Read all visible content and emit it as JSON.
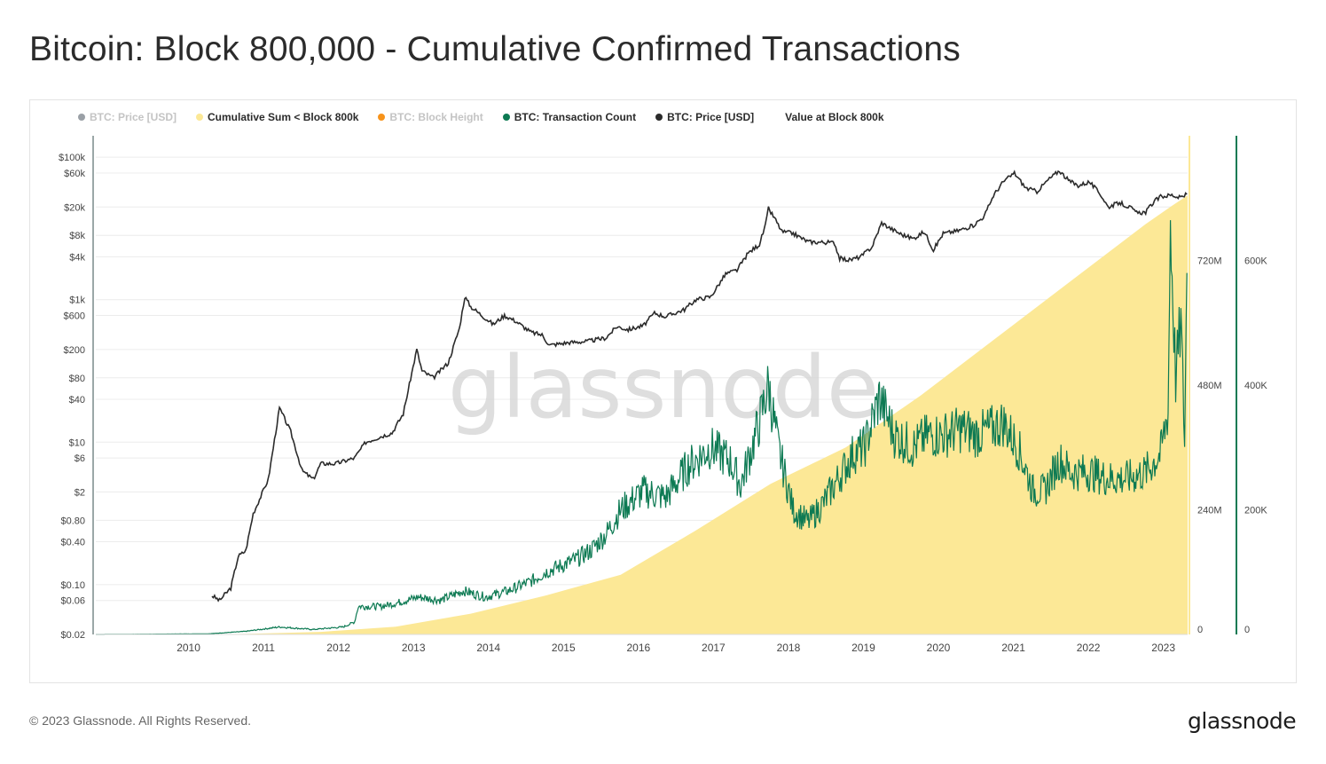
{
  "title": "Bitcoin: Block 800,000 - Cumulative Confirmed Transactions",
  "footer": {
    "copyright": "© 2023 Glassnode. All Rights Reserved.",
    "logo": "glassnode"
  },
  "watermark": "glassnode",
  "colors": {
    "price": "#2b2b2b",
    "cumulative": "#fce896",
    "transactions": "#0d7a53",
    "block_height": "#f7931a",
    "muted": "#a0a4a8"
  },
  "legend": [
    {
      "label": "BTC: Price [USD]",
      "color": "#9aa0a6",
      "active": false
    },
    {
      "label": "Cumulative Sum < Block 800k",
      "color": "#fce896",
      "active": true
    },
    {
      "label": "BTC: Block Height",
      "color": "#f7931a",
      "active": false
    },
    {
      "label": "BTC: Transaction Count",
      "color": "#0d7a53",
      "active": true
    },
    {
      "label": "BTC: Price [USD]",
      "color": "#2b2b2b",
      "active": true
    },
    {
      "label": "Value at Block 800k",
      "color": "",
      "active": true
    }
  ],
  "chart_data": {
    "type": "line",
    "title": "Bitcoin: Block 800,000 - Cumulative Confirmed Transactions",
    "x_range": [
      2009.0,
      2023.56
    ],
    "x_ticks": [
      "2010",
      "2011",
      "2012",
      "2013",
      "2014",
      "2015",
      "2016",
      "2017",
      "2018",
      "2019",
      "2020",
      "2021",
      "2022",
      "2023"
    ],
    "x_tick_values": [
      2010,
      2011,
      2012,
      2013,
      2014,
      2015,
      2016,
      2017,
      2018,
      2019,
      2020,
      2021,
      2022,
      2023
    ],
    "y_left": {
      "scale": "log",
      "range": [
        0.02,
        200000
      ],
      "ticks": [
        "$100k",
        "$60k",
        "$20k",
        "$8k",
        "$4k",
        "$1k",
        "$600",
        "$200",
        "$80",
        "$40",
        "$10",
        "$6",
        "$2",
        "$0.80",
        "$0.40",
        "$0.10",
        "$0.06",
        "$0.02"
      ],
      "tick_values": [
        100000,
        60000,
        20000,
        8000,
        4000,
        1000,
        600,
        200,
        80,
        40,
        10,
        6,
        2,
        0.8,
        0.4,
        0.1,
        0.06,
        0.02
      ]
    },
    "y_right_cumulative": {
      "range": [
        0,
        960000000
      ],
      "ticks": [
        "720M",
        "480M",
        "240M",
        "0"
      ],
      "tick_values": [
        720000000,
        480000000,
        240000000,
        0
      ]
    },
    "y_right_transactions": {
      "range": [
        0,
        800000
      ],
      "ticks": [
        "600K",
        "400K",
        "200K",
        "0"
      ],
      "tick_values": [
        600000,
        400000,
        200000,
        0
      ]
    },
    "grid": true,
    "legend_position": "top-left",
    "series": [
      {
        "name": "BTC: Price [USD]",
        "axis": "left",
        "points": [
          [
            2010.55,
            0.07
          ],
          [
            2010.65,
            0.06
          ],
          [
            2010.8,
            0.09
          ],
          [
            2010.9,
            0.25
          ],
          [
            2011.0,
            0.3
          ],
          [
            2011.1,
            1.0
          ],
          [
            2011.3,
            3.0
          ],
          [
            2011.45,
            30
          ],
          [
            2011.6,
            14
          ],
          [
            2011.75,
            4
          ],
          [
            2011.9,
            3
          ],
          [
            2012.0,
            5
          ],
          [
            2012.2,
            5
          ],
          [
            2012.45,
            6
          ],
          [
            2012.6,
            10
          ],
          [
            2012.8,
            12
          ],
          [
            2012.95,
            13.5
          ],
          [
            2013.1,
            25
          ],
          [
            2013.28,
            200
          ],
          [
            2013.35,
            100
          ],
          [
            2013.5,
            80
          ],
          [
            2013.7,
            130
          ],
          [
            2013.85,
            400
          ],
          [
            2013.92,
            1100
          ],
          [
            2014.0,
            800
          ],
          [
            2014.15,
            600
          ],
          [
            2014.3,
            450
          ],
          [
            2014.45,
            600
          ],
          [
            2014.6,
            500
          ],
          [
            2014.8,
            350
          ],
          [
            2014.95,
            320
          ],
          [
            2015.05,
            230
          ],
          [
            2015.3,
            250
          ],
          [
            2015.55,
            260
          ],
          [
            2015.8,
            290
          ],
          [
            2015.95,
            420
          ],
          [
            2016.1,
            380
          ],
          [
            2016.3,
            430
          ],
          [
            2016.45,
            650
          ],
          [
            2016.6,
            580
          ],
          [
            2016.85,
            730
          ],
          [
            2017.0,
            1000
          ],
          [
            2017.2,
            1100
          ],
          [
            2017.4,
            2300
          ],
          [
            2017.55,
            2600
          ],
          [
            2017.7,
            4500
          ],
          [
            2017.85,
            6000
          ],
          [
            2017.93,
            11000
          ],
          [
            2017.97,
            19000
          ],
          [
            2018.05,
            14000
          ],
          [
            2018.15,
            9000
          ],
          [
            2018.3,
            8500
          ],
          [
            2018.5,
            6500
          ],
          [
            2018.7,
            6400
          ],
          [
            2018.85,
            6300
          ],
          [
            2018.92,
            3800
          ],
          [
            2019.05,
            3600
          ],
          [
            2019.2,
            4000
          ],
          [
            2019.35,
            5500
          ],
          [
            2019.48,
            12000
          ],
          [
            2019.6,
            10000
          ],
          [
            2019.75,
            8200
          ],
          [
            2019.9,
            7200
          ],
          [
            2020.05,
            9000
          ],
          [
            2020.17,
            5000
          ],
          [
            2020.3,
            8500
          ],
          [
            2020.5,
            9300
          ],
          [
            2020.7,
            11000
          ],
          [
            2020.85,
            15000
          ],
          [
            2020.97,
            29000
          ],
          [
            2021.1,
            45000
          ],
          [
            2021.25,
            60000
          ],
          [
            2021.4,
            37000
          ],
          [
            2021.55,
            33000
          ],
          [
            2021.7,
            48000
          ],
          [
            2021.85,
            65000
          ],
          [
            2021.97,
            47000
          ],
          [
            2022.1,
            40000
          ],
          [
            2022.25,
            45000
          ],
          [
            2022.4,
            30000
          ],
          [
            2022.5,
            20000
          ],
          [
            2022.65,
            23000
          ],
          [
            2022.8,
            19500
          ],
          [
            2022.88,
            16500
          ],
          [
            2023.0,
            17000
          ],
          [
            2023.1,
            23000
          ],
          [
            2023.2,
            28000
          ],
          [
            2023.35,
            29500
          ],
          [
            2023.45,
            27000
          ],
          [
            2023.55,
            30000
          ]
        ]
      },
      {
        "name": "Cumulative Sum < Block 800k",
        "axis": "right_cumulative",
        "points": [
          [
            2009.0,
            0
          ],
          [
            2011.0,
            1000000
          ],
          [
            2012.0,
            5000000
          ],
          [
            2013.0,
            15000000
          ],
          [
            2014.0,
            40000000
          ],
          [
            2015.0,
            75000000
          ],
          [
            2016.0,
            115000000
          ],
          [
            2017.0,
            200000000
          ],
          [
            2018.0,
            290000000
          ],
          [
            2019.0,
            360000000
          ],
          [
            2020.0,
            460000000
          ],
          [
            2021.0,
            570000000
          ],
          [
            2022.0,
            680000000
          ],
          [
            2023.0,
            790000000
          ],
          [
            2023.35,
            825000000
          ],
          [
            2023.56,
            845000000
          ]
        ]
      },
      {
        "name": "BTC: Transaction Count",
        "axis": "right_transactions",
        "points": [
          [
            2009.0,
            0
          ],
          [
            2010.5,
            1000
          ],
          [
            2011.0,
            5000
          ],
          [
            2011.45,
            12000
          ],
          [
            2011.9,
            8000
          ],
          [
            2012.3,
            12000
          ],
          [
            2012.45,
            20000
          ],
          [
            2012.5,
            45000
          ],
          [
            2012.8,
            45000
          ],
          [
            2013.0,
            50000
          ],
          [
            2013.3,
            60000
          ],
          [
            2013.6,
            55000
          ],
          [
            2013.9,
            70000
          ],
          [
            2014.2,
            60000
          ],
          [
            2014.5,
            70000
          ],
          [
            2014.8,
            85000
          ],
          [
            2015.0,
            100000
          ],
          [
            2015.4,
            120000
          ],
          [
            2015.6,
            135000
          ],
          [
            2015.8,
            160000
          ],
          [
            2016.0,
            200000
          ],
          [
            2016.3,
            230000
          ],
          [
            2016.6,
            220000
          ],
          [
            2016.9,
            270000
          ],
          [
            2017.2,
            300000
          ],
          [
            2017.45,
            280000
          ],
          [
            2017.6,
            240000
          ],
          [
            2017.85,
            340000
          ],
          [
            2017.97,
            400000
          ],
          [
            2018.1,
            300000
          ],
          [
            2018.3,
            200000
          ],
          [
            2018.5,
            180000
          ],
          [
            2018.7,
            210000
          ],
          [
            2018.9,
            250000
          ],
          [
            2019.1,
            290000
          ],
          [
            2019.25,
            300000
          ],
          [
            2019.45,
            380000
          ],
          [
            2019.65,
            320000
          ],
          [
            2019.9,
            300000
          ],
          [
            2020.1,
            320000
          ],
          [
            2020.3,
            320000
          ],
          [
            2020.55,
            330000
          ],
          [
            2020.75,
            320000
          ],
          [
            2020.95,
            330000
          ],
          [
            2021.1,
            340000
          ],
          [
            2021.3,
            300000
          ],
          [
            2021.5,
            230000
          ],
          [
            2021.65,
            230000
          ],
          [
            2021.85,
            280000
          ],
          [
            2022.0,
            260000
          ],
          [
            2022.25,
            260000
          ],
          [
            2022.5,
            250000
          ],
          [
            2022.75,
            250000
          ],
          [
            2023.0,
            260000
          ],
          [
            2023.2,
            290000
          ],
          [
            2023.3,
            360000
          ],
          [
            2023.33,
            660000
          ],
          [
            2023.4,
            410000
          ],
          [
            2023.47,
            500000
          ],
          [
            2023.52,
            310000
          ],
          [
            2023.55,
            580000
          ]
        ]
      }
    ]
  }
}
